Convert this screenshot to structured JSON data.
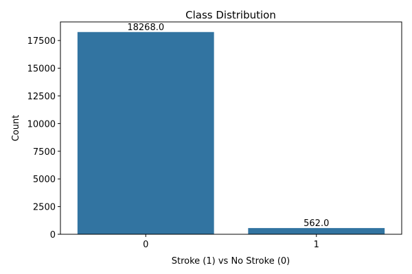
{
  "chart_data": {
    "type": "bar",
    "title": "Class Distribution",
    "xlabel": "Stroke (1) vs No Stroke (0)",
    "ylabel": "Count",
    "categories": [
      "0",
      "1"
    ],
    "values": [
      18268.0,
      562.0
    ],
    "value_labels": [
      "18268.0",
      "562.0"
    ],
    "yticks": [
      0,
      2500,
      5000,
      7500,
      10000,
      12500,
      15000,
      17500
    ],
    "ylim": [
      0,
      19181.4
    ],
    "grid": false,
    "legend": "none",
    "bar_color": "#3274a1"
  }
}
